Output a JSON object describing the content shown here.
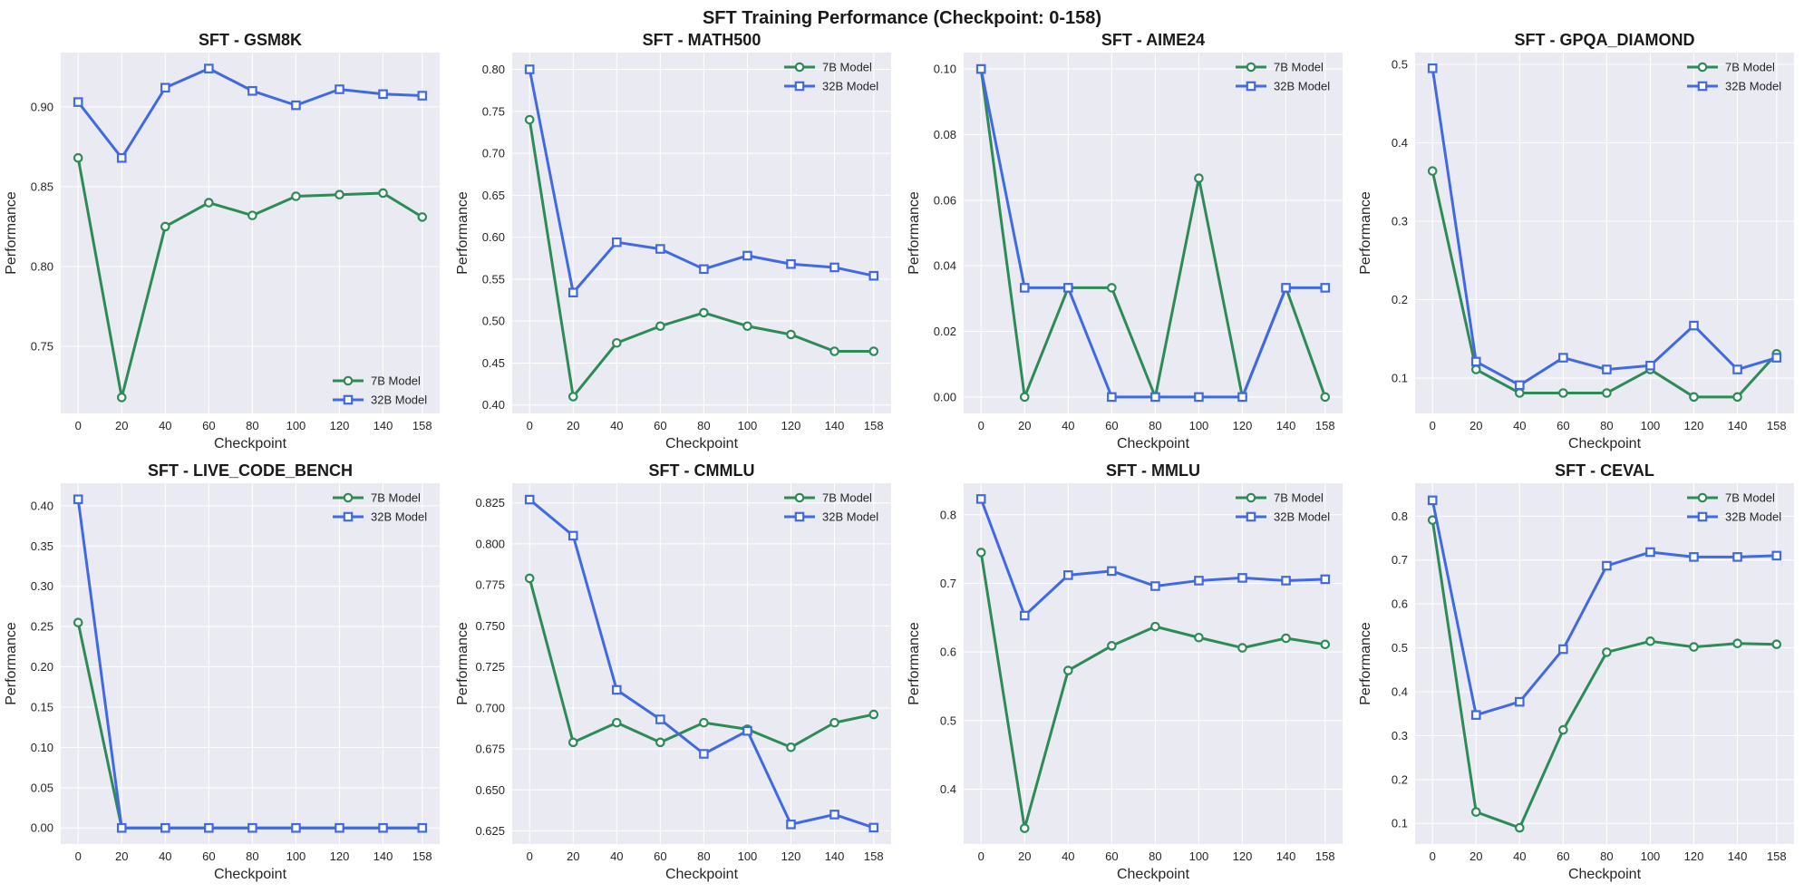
{
  "figure_title": "SFT Training Performance (Checkpoint: 0-158)",
  "colors": {
    "plot_bg": "#eaeaf2",
    "grid": "#ffffff",
    "series_7b": "#2e8b57",
    "series_32b": "#4169e1"
  },
  "chart_data": [
    {
      "type": "line",
      "title": "SFT - GSM8K",
      "xlabel": "Checkpoint",
      "ylabel": "Performance",
      "x": [
        0,
        20,
        40,
        60,
        80,
        100,
        120,
        140,
        158
      ],
      "xticks": [
        "0",
        "20",
        "40",
        "60",
        "80",
        "100",
        "120",
        "140",
        "158"
      ],
      "ylim": [
        0.708,
        0.934
      ],
      "yticks": [
        0.75,
        0.8,
        0.85,
        0.9
      ],
      "ytick_labels": [
        "0.75",
        "0.80",
        "0.85",
        "0.90"
      ],
      "legend": "lower-right",
      "series": [
        {
          "name": "7B Model",
          "marker": "circle",
          "values": [
            0.868,
            0.718,
            0.825,
            0.84,
            0.832,
            0.844,
            0.845,
            0.846,
            0.831
          ]
        },
        {
          "name": "32B Model",
          "marker": "square",
          "values": [
            0.903,
            0.868,
            0.912,
            0.924,
            0.91,
            0.901,
            0.911,
            0.908,
            0.907
          ]
        }
      ]
    },
    {
      "type": "line",
      "title": "SFT - MATH500",
      "xlabel": "Checkpoint",
      "ylabel": "Performance",
      "x": [
        0,
        20,
        40,
        60,
        80,
        100,
        120,
        140,
        158
      ],
      "xticks": [
        "0",
        "20",
        "40",
        "60",
        "80",
        "100",
        "120",
        "140",
        "158"
      ],
      "ylim": [
        0.39,
        0.82
      ],
      "yticks": [
        0.4,
        0.45,
        0.5,
        0.55,
        0.6,
        0.65,
        0.7,
        0.75,
        0.8
      ],
      "ytick_labels": [
        "0.40",
        "0.45",
        "0.50",
        "0.55",
        "0.60",
        "0.65",
        "0.70",
        "0.75",
        "0.80"
      ],
      "legend": "top-right",
      "series": [
        {
          "name": "7B Model",
          "marker": "circle",
          "values": [
            0.74,
            0.41,
            0.474,
            0.494,
            0.51,
            0.494,
            0.484,
            0.464,
            0.464
          ]
        },
        {
          "name": "32B Model",
          "marker": "square",
          "values": [
            0.8,
            0.534,
            0.594,
            0.586,
            0.562,
            0.578,
            0.568,
            0.564,
            0.554
          ]
        }
      ]
    },
    {
      "type": "line",
      "title": "SFT - AIME24",
      "xlabel": "Checkpoint",
      "ylabel": "Performance",
      "x": [
        0,
        20,
        40,
        60,
        80,
        100,
        120,
        140,
        158
      ],
      "xticks": [
        "0",
        "20",
        "40",
        "60",
        "80",
        "100",
        "120",
        "140",
        "158"
      ],
      "ylim": [
        -0.005,
        0.105
      ],
      "yticks": [
        0.0,
        0.02,
        0.04,
        0.06,
        0.08,
        0.1
      ],
      "ytick_labels": [
        "0.00",
        "0.02",
        "0.04",
        "0.06",
        "0.08",
        "0.10"
      ],
      "legend": "top-right",
      "series": [
        {
          "name": "7B Model",
          "marker": "circle",
          "values": [
            0.1,
            0.0,
            0.0333,
            0.0333,
            0.0,
            0.0667,
            0.0,
            0.0333,
            0.0
          ]
        },
        {
          "name": "32B Model",
          "marker": "square",
          "values": [
            0.1,
            0.0333,
            0.0333,
            0.0,
            0.0,
            0.0,
            0.0,
            0.0333,
            0.0333
          ]
        }
      ]
    },
    {
      "type": "line",
      "title": "SFT - GPQA_DIAMOND",
      "xlabel": "Checkpoint",
      "ylabel": "Performance",
      "x": [
        0,
        20,
        40,
        60,
        80,
        100,
        120,
        140,
        158
      ],
      "xticks": [
        "0",
        "20",
        "40",
        "60",
        "80",
        "100",
        "120",
        "140",
        "158"
      ],
      "ylim": [
        0.055,
        0.515
      ],
      "yticks": [
        0.1,
        0.2,
        0.3,
        0.4,
        0.5
      ],
      "ytick_labels": [
        "0.1",
        "0.2",
        "0.3",
        "0.4",
        "0.5"
      ],
      "legend": "top-right",
      "series": [
        {
          "name": "7B Model",
          "marker": "circle",
          "values": [
            0.364,
            0.111,
            0.081,
            0.081,
            0.081,
            0.111,
            0.076,
            0.076,
            0.131
          ]
        },
        {
          "name": "32B Model",
          "marker": "square",
          "values": [
            0.495,
            0.121,
            0.091,
            0.126,
            0.111,
            0.116,
            0.167,
            0.111,
            0.126
          ]
        }
      ]
    },
    {
      "type": "line",
      "title": "SFT - LIVE_CODE_BENCH",
      "xlabel": "Checkpoint",
      "ylabel": "Performance",
      "x": [
        0,
        20,
        40,
        60,
        80,
        100,
        120,
        140,
        158
      ],
      "xticks": [
        "0",
        "20",
        "40",
        "60",
        "80",
        "100",
        "120",
        "140",
        "158"
      ],
      "ylim": [
        -0.02,
        0.428
      ],
      "yticks": [
        0.0,
        0.05,
        0.1,
        0.15,
        0.2,
        0.25,
        0.3,
        0.35,
        0.4
      ],
      "ytick_labels": [
        "0.00",
        "0.05",
        "0.10",
        "0.15",
        "0.20",
        "0.25",
        "0.30",
        "0.35",
        "0.40"
      ],
      "legend": "top-right",
      "series": [
        {
          "name": "7B Model",
          "marker": "circle",
          "values": [
            0.255,
            0,
            0,
            0,
            0,
            0,
            0,
            0,
            0
          ]
        },
        {
          "name": "32B Model",
          "marker": "square",
          "values": [
            0.408,
            0,
            0,
            0,
            0,
            0,
            0,
            0,
            0
          ]
        }
      ]
    },
    {
      "type": "line",
      "title": "SFT - CMMLU",
      "xlabel": "Checkpoint",
      "ylabel": "Performance",
      "x": [
        0,
        20,
        40,
        60,
        80,
        100,
        120,
        140,
        158
      ],
      "xticks": [
        "0",
        "20",
        "40",
        "60",
        "80",
        "100",
        "120",
        "140",
        "158"
      ],
      "ylim": [
        0.617,
        0.837
      ],
      "yticks": [
        0.625,
        0.65,
        0.675,
        0.7,
        0.725,
        0.75,
        0.775,
        0.8,
        0.825
      ],
      "ytick_labels": [
        "0.625",
        "0.650",
        "0.675",
        "0.700",
        "0.725",
        "0.750",
        "0.775",
        "0.800",
        "0.825"
      ],
      "legend": "top-right",
      "series": [
        {
          "name": "7B Model",
          "marker": "circle",
          "values": [
            0.779,
            0.679,
            0.691,
            0.679,
            0.691,
            0.687,
            0.676,
            0.691,
            0.696
          ]
        },
        {
          "name": "32B Model",
          "marker": "square",
          "values": [
            0.827,
            0.805,
            0.711,
            0.693,
            0.672,
            0.686,
            0.629,
            0.635,
            0.627
          ]
        }
      ]
    },
    {
      "type": "line",
      "title": "SFT - MMLU",
      "xlabel": "Checkpoint",
      "ylabel": "Performance",
      "x": [
        0,
        20,
        40,
        60,
        80,
        100,
        120,
        140,
        158
      ],
      "xticks": [
        "0",
        "20",
        "40",
        "60",
        "80",
        "100",
        "120",
        "140",
        "158"
      ],
      "ylim": [
        0.32,
        0.846
      ],
      "yticks": [
        0.4,
        0.5,
        0.6,
        0.7,
        0.8
      ],
      "ytick_labels": [
        "0.4",
        "0.5",
        "0.6",
        "0.7",
        "0.8"
      ],
      "legend": "top-right",
      "series": [
        {
          "name": "7B Model",
          "marker": "circle",
          "values": [
            0.745,
            0.343,
            0.573,
            0.609,
            0.637,
            0.621,
            0.606,
            0.62,
            0.611
          ]
        },
        {
          "name": "32B Model",
          "marker": "square",
          "values": [
            0.823,
            0.653,
            0.712,
            0.718,
            0.696,
            0.704,
            0.708,
            0.704,
            0.706
          ]
        }
      ]
    },
    {
      "type": "line",
      "title": "SFT - CEVAL",
      "xlabel": "Checkpoint",
      "ylabel": "Performance",
      "x": [
        0,
        20,
        40,
        60,
        80,
        100,
        120,
        140,
        158
      ],
      "xticks": [
        "0",
        "20",
        "40",
        "60",
        "80",
        "100",
        "120",
        "140",
        "158"
      ],
      "ylim": [
        0.053,
        0.875
      ],
      "yticks": [
        0.1,
        0.2,
        0.3,
        0.4,
        0.5,
        0.6,
        0.7,
        0.8
      ],
      "ytick_labels": [
        "0.1",
        "0.2",
        "0.3",
        "0.4",
        "0.5",
        "0.6",
        "0.7",
        "0.8"
      ],
      "legend": "top-right",
      "series": [
        {
          "name": "7B Model",
          "marker": "circle",
          "values": [
            0.791,
            0.126,
            0.09,
            0.313,
            0.49,
            0.515,
            0.502,
            0.51,
            0.508
          ]
        },
        {
          "name": "32B Model",
          "marker": "square",
          "values": [
            0.836,
            0.347,
            0.377,
            0.497,
            0.687,
            0.718,
            0.707,
            0.707,
            0.71
          ]
        }
      ]
    }
  ]
}
